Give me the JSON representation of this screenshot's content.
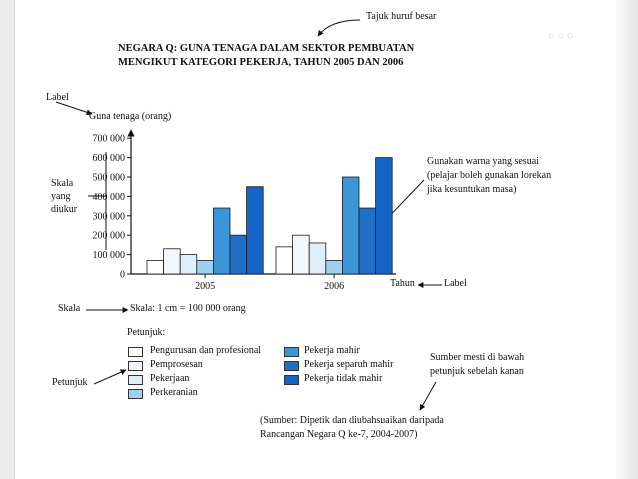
{
  "annotations": {
    "tajuk": "Tajuk huruf besar",
    "label_top": "Label",
    "skala_yang_diukur": [
      "Skala",
      "yang",
      "diukur"
    ],
    "warna_note": [
      "Gunakan warna yang sesuai",
      "(pelajar boleh gunakan lorekan",
      "jika kesuntukan masa)"
    ],
    "label_bottom": "Label",
    "skala_left": "Skala",
    "petunjuk_left": "Petunjuk",
    "sumber_note": [
      "Sumber mesti di bawah",
      "petunjuk sebelah kanan"
    ]
  },
  "scale_text": "Skala: 1 cm = 100 000 orang",
  "legend": {
    "title": "Petunjuk:",
    "items": [
      {
        "label": "Pengurusan dan profesional",
        "color": "#ffffff"
      },
      {
        "label": "Pemprosesan",
        "color": "#f2f7fc"
      },
      {
        "label": "Pekerjaan",
        "color": "#dfeef9"
      },
      {
        "label": "Perkeranian",
        "color": "#9fd0ee"
      },
      {
        "label": "Pekerja mahir",
        "color": "#3a96d6"
      },
      {
        "label": "Pekerja separuh mahir",
        "color": "#1f6fc6"
      },
      {
        "label": "Pekerja tidak mahir",
        "color": "#1464c8"
      }
    ]
  },
  "source": [
    "(Sumber: Dipetik dan diubahsuaikan daripada",
    "Rancangan Negara Q ke-7, 2004-2007)"
  ],
  "chart_data": {
    "type": "bar",
    "title": [
      "NEGARA Q: GUNA TENAGA DALAM SEKTOR PEMBUATAN",
      "MENGIKUT KATEGORI PEKERJA, TAHUN 2005 DAN 2006"
    ],
    "xlabel": "Tahun",
    "ylabel": "Guna tenaga (orang)",
    "categories": [
      "2005",
      "2006"
    ],
    "yticks": [
      "0",
      "100 000",
      "200 000",
      "300 000",
      "400 000",
      "500 000",
      "600 000",
      "700 000"
    ],
    "ylim": [
      0,
      750000
    ],
    "series": [
      {
        "name": "Pengurusan dan profesional",
        "color": "#ffffff",
        "values": [
          70000,
          140000
        ]
      },
      {
        "name": "Pemprosesan",
        "color": "#f2f7fc",
        "values": [
          130000,
          200000
        ]
      },
      {
        "name": "Pekerjaan",
        "color": "#dfeef9",
        "values": [
          100000,
          160000
        ]
      },
      {
        "name": "Perkeranian",
        "color": "#9fd0ee",
        "values": [
          70000,
          70000
        ]
      },
      {
        "name": "Pekerja mahir",
        "color": "#3a96d6",
        "values": [
          340000,
          500000
        ]
      },
      {
        "name": "Pekerja separuh mahir",
        "color": "#1f6fc6",
        "values": [
          200000,
          340000
        ]
      },
      {
        "name": "Pekerja tidak mahir",
        "color": "#1464c8",
        "values": [
          450000,
          600000
        ]
      }
    ]
  }
}
